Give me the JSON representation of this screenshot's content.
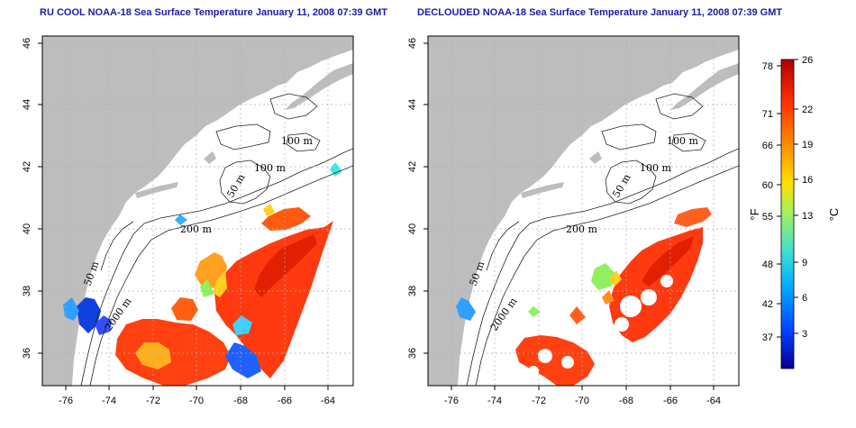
{
  "maps": [
    {
      "id": "left",
      "title": "RU COOL NOAA-18 Sea Surface Temperature January 11, 2008 07:39 GMT",
      "contour_labels": [
        "100 m",
        "100 m",
        "50 m",
        "200 m",
        "50 m",
        "2000 m"
      ]
    },
    {
      "id": "right",
      "title": "DECLOUDED NOAA-18 Sea Surface Temperature January 11, 2008 07:39 GMT",
      "contour_labels": [
        "100 m",
        "100 m",
        "50 m",
        "200 m",
        "50 m",
        "2000 m"
      ]
    }
  ],
  "axes": {
    "x_ticks": [
      "-76",
      "-74",
      "-72",
      "-70",
      "-68",
      "-66",
      "-64"
    ],
    "y_ticks": [
      "46",
      "44",
      "42",
      "40",
      "38",
      "36"
    ],
    "lon_range": [
      -77,
      -63
    ],
    "lat_range": [
      35,
      46
    ]
  },
  "colorbar": {
    "fahrenheit_unit": "°F",
    "celsius_unit": "°C",
    "fahrenheit_ticks": [
      "78",
      "71",
      "66",
      "60",
      "55",
      "48",
      "42",
      "37"
    ],
    "celsius_ticks": [
      "26",
      "22",
      "19",
      "16",
      "13",
      "9",
      "6",
      "3"
    ],
    "colors": [
      "#08008f",
      "#0040ff",
      "#00b0ff",
      "#40e0d0",
      "#a0f060",
      "#ffe000",
      "#ff9000",
      "#ff3000",
      "#b00000"
    ]
  },
  "colors": {
    "land": "#bdbdbd",
    "ocean": "#ffffff",
    "grid": "#b0b0b0",
    "title": "#1a1aa8"
  }
}
